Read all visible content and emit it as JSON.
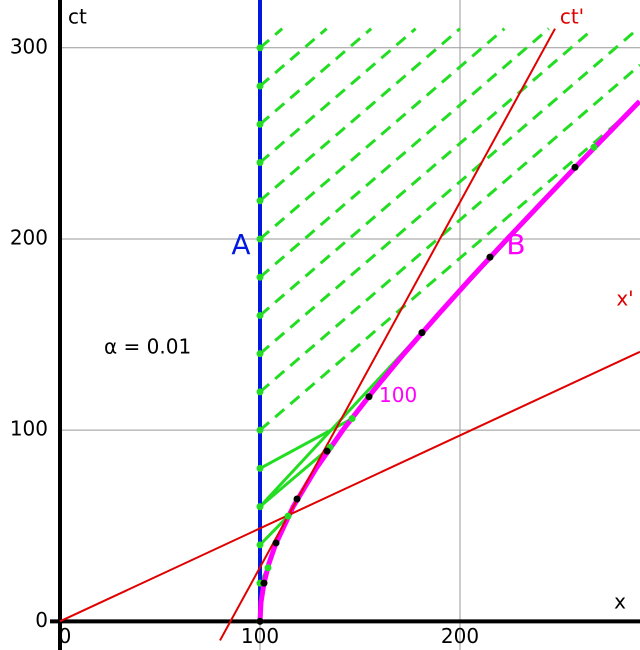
{
  "chart_data": {
    "type": "line",
    "xlabel": "x",
    "ylabel": "ct",
    "xlim": [
      -30,
      290
    ],
    "ylim": [
      -15,
      325
    ],
    "xticks": [
      0,
      100,
      200
    ],
    "yticks": [
      0,
      100,
      200,
      300
    ],
    "grid": true,
    "annotation": "α = 0.01",
    "series": [
      {
        "name": "A",
        "color": "#0018e0",
        "x": [
          100,
          100
        ],
        "y": [
          0,
          325
        ]
      },
      {
        "name": "B",
        "color": "#ff00ff",
        "x": [
          100,
          100.5,
          102,
          104.4,
          107.7,
          116.6,
          128.1,
          141.4,
          156.2,
          172,
          188.7,
          205.9,
          223.6,
          241.7,
          260,
          278.6,
          289.8
        ],
        "y": [
          0,
          10,
          20,
          30,
          40,
          60,
          80,
          100,
          120,
          140,
          160,
          180,
          200,
          220,
          240,
          260,
          272
        ]
      },
      {
        "name": "ct'",
        "color": "#e00000",
        "x": [
          80,
          247.5
        ],
        "y": [
          -10,
          310
        ]
      },
      {
        "name": "x'",
        "color": "#e00000",
        "x": [
          0,
          290
        ],
        "y": [
          0,
          141
        ]
      }
    ],
    "proper_time_label": {
      "text": "100",
      "x": 154.5,
      "y": 117.5
    },
    "events": {
      "color": "#000000",
      "x": [
        100,
        102,
        108,
        118.5,
        133.5,
        154.5,
        181,
        215,
        257.5
      ],
      "y": [
        0,
        20,
        41,
        64,
        89,
        117.5,
        151,
        190.5,
        237.5
      ]
    },
    "light_signals": {
      "color": "#22dd22",
      "solid": [
        {
          "x": [
            100,
            104
          ],
          "y": [
            20,
            28
          ]
        },
        {
          "x": [
            100,
            114
          ],
          "y": [
            40,
            55
          ]
        },
        {
          "x": [
            100,
            135
          ],
          "y": [
            60,
            91
          ]
        },
        {
          "x": [
            100,
            146
          ],
          "y": [
            80,
            106
          ]
        },
        {
          "x": [
            100,
            267
          ],
          "y": [
            60,
            248
          ]
        }
      ],
      "dashed": [
        {
          "x": [
            100,
            290
          ],
          "y": [
            100,
            271
          ]
        },
        {
          "x": [
            100,
            290
          ],
          "y": [
            120,
            291
          ]
        },
        {
          "x": [
            100,
            289
          ],
          "y": [
            140,
            310
          ]
        },
        {
          "x": [
            100,
            266.7
          ],
          "y": [
            160,
            310
          ]
        },
        {
          "x": [
            100,
            244.4
          ],
          "y": [
            180,
            310
          ]
        },
        {
          "x": [
            100,
            222.2
          ],
          "y": [
            200,
            310
          ]
        },
        {
          "x": [
            100,
            200
          ],
          "y": [
            220,
            310
          ]
        },
        {
          "x": [
            100,
            177.8
          ],
          "y": [
            240,
            310
          ]
        },
        {
          "x": [
            100,
            155.6
          ],
          "y": [
            260,
            310
          ]
        },
        {
          "x": [
            100,
            133.3
          ],
          "y": [
            280,
            310
          ]
        },
        {
          "x": [
            100,
            111.1
          ],
          "y": [
            300,
            310
          ]
        }
      ],
      "emission_ct": [
        0,
        20,
        40,
        60,
        80,
        100,
        120,
        140,
        160,
        180,
        200,
        220,
        240,
        260,
        280,
        300
      ]
    }
  }
}
